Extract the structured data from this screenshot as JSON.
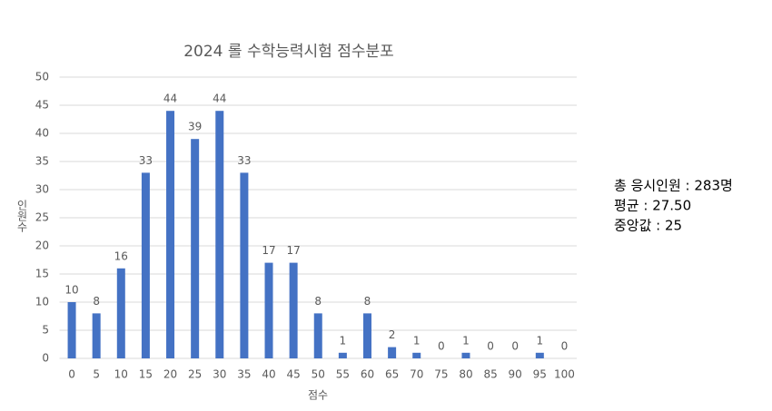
{
  "chart_data": {
    "type": "bar",
    "title": "2024 롤 수학능력시험 점수분포",
    "x_label": "점수",
    "y_label": "인원수",
    "categories": [
      0,
      5,
      10,
      15,
      20,
      25,
      30,
      35,
      40,
      45,
      50,
      55,
      60,
      65,
      70,
      75,
      80,
      85,
      90,
      95,
      100
    ],
    "values": [
      10,
      8,
      16,
      33,
      44,
      39,
      44,
      33,
      17,
      17,
      8,
      1,
      8,
      2,
      1,
      0,
      1,
      0,
      0,
      1,
      0
    ],
    "color": "#4472c4",
    "ylim": [
      0,
      50
    ],
    "yticks": [
      0,
      5,
      10,
      15,
      20,
      25,
      30,
      35,
      40,
      45,
      50
    ],
    "grid": true,
    "annotations": [
      "총 응시인원 : 283명",
      "평균 : 27.50",
      "중앙값 : 25"
    ]
  }
}
